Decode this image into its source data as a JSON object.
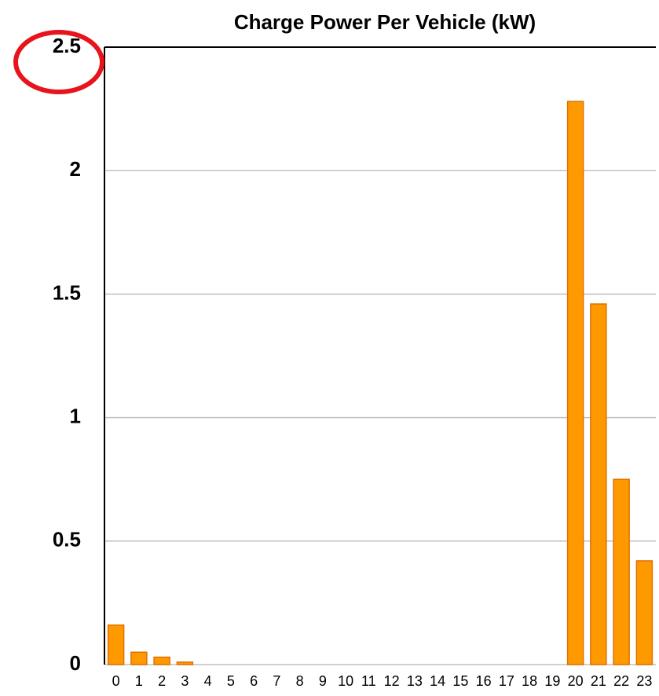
{
  "chart_data": {
    "type": "bar",
    "title": "Charge Power Per Vehicle (kW)",
    "categories": [
      "0",
      "1",
      "2",
      "3",
      "4",
      "5",
      "6",
      "7",
      "8",
      "9",
      "10",
      "11",
      "12",
      "13",
      "14",
      "15",
      "16",
      "17",
      "18",
      "19",
      "20",
      "21",
      "22",
      "23"
    ],
    "values": [
      0.16,
      0.05,
      0.03,
      0.01,
      0,
      0,
      0,
      0,
      0,
      0,
      0,
      0,
      0,
      0,
      0,
      0,
      0,
      0,
      0,
      0,
      2.28,
      1.46,
      0.75,
      0.42
    ],
    "color": "#ff9900",
    "ylim": [
      0,
      2.5
    ],
    "yticks": [
      0,
      0.5,
      1,
      1.5,
      2,
      2.5
    ],
    "grid": true
  }
}
